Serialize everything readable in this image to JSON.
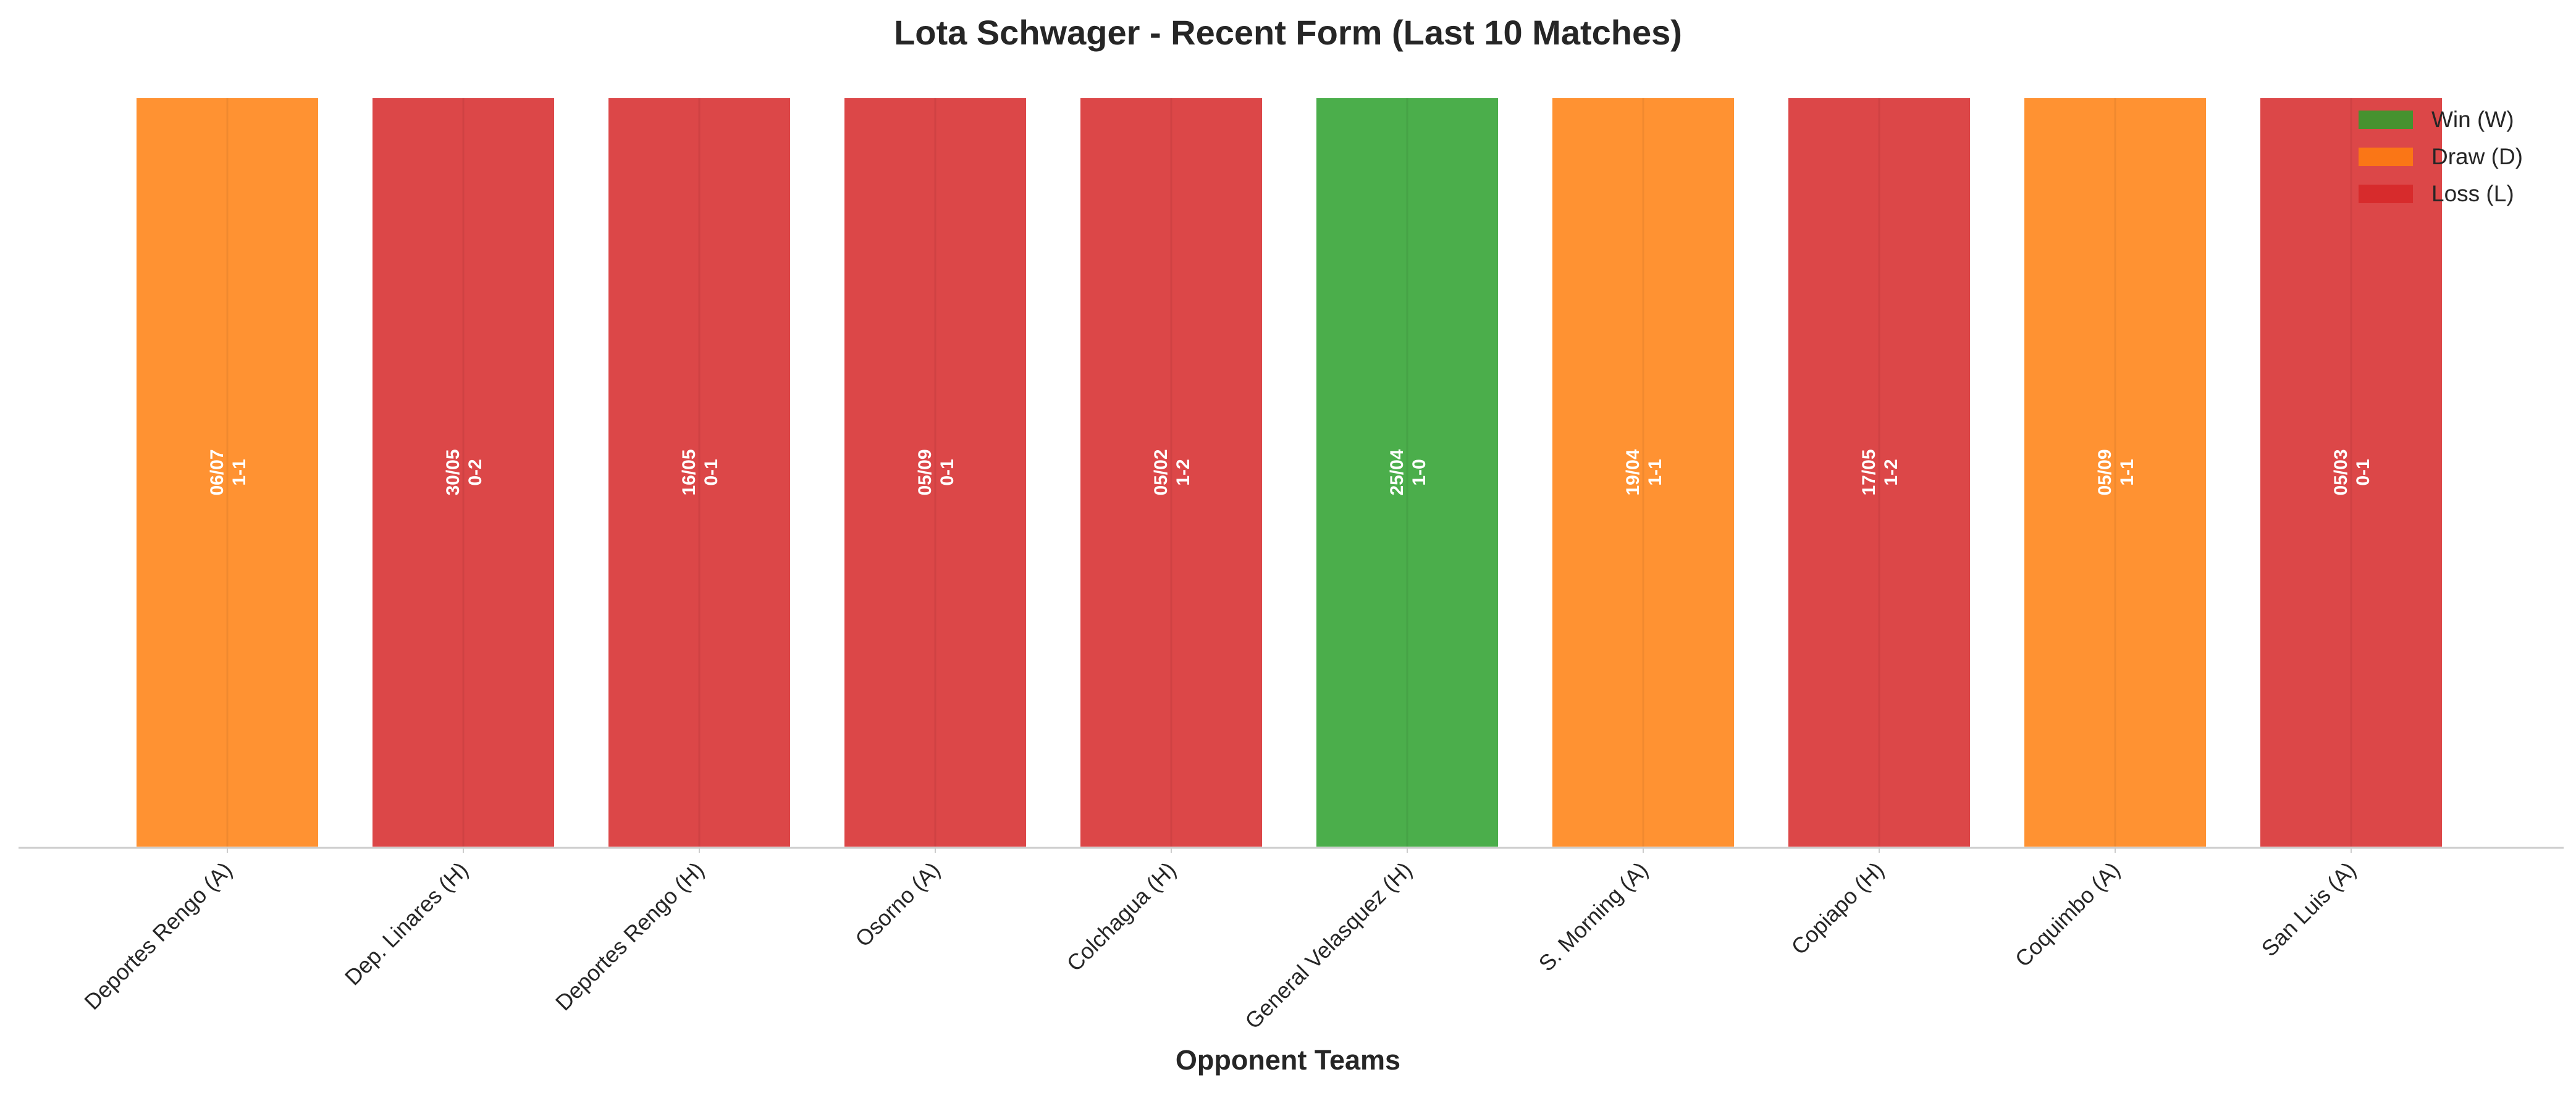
{
  "chart_data": {
    "type": "bar",
    "title": "Lota Schwager - Recent Form (Last 10 Matches)",
    "xlabel": "Opponent Teams",
    "ylabel": "",
    "ylim": [
      0,
      1
    ],
    "grid": false,
    "legend_position": "top-right",
    "categories": [
      "Deportes Rengo (A)",
      "Dep. Linares (H)",
      "Deportes Rengo (H)",
      "Osorno (A)",
      "Colchagua (H)",
      "General Velasquez (H)",
      "S. Morning (A)",
      "Copiapo (H)",
      "Coquimbo (A)",
      "San Luis (A)"
    ],
    "values": [
      1,
      1,
      1,
      1,
      1,
      1,
      1,
      1,
      1,
      1
    ],
    "results": [
      "D",
      "L",
      "L",
      "L",
      "L",
      "W",
      "D",
      "L",
      "D",
      "L"
    ],
    "dates": [
      "06/07",
      "30/05",
      "16/05",
      "05/09",
      "05/02",
      "25/04",
      "19/04",
      "17/05",
      "05/09",
      "05/03"
    ],
    "scores": [
      "1-1",
      "0-2",
      "0-1",
      "0-1",
      "1-2",
      "1-0",
      "1-1",
      "1-2",
      "1-1",
      "0-1"
    ],
    "legend": [
      {
        "key": "W",
        "label": "Win (W)",
        "color": "#2ca02c"
      },
      {
        "key": "D",
        "label": "Draw (D)",
        "color": "#ff7f0e"
      },
      {
        "key": "L",
        "label": "Loss (L)",
        "color": "#d62728"
      }
    ]
  }
}
